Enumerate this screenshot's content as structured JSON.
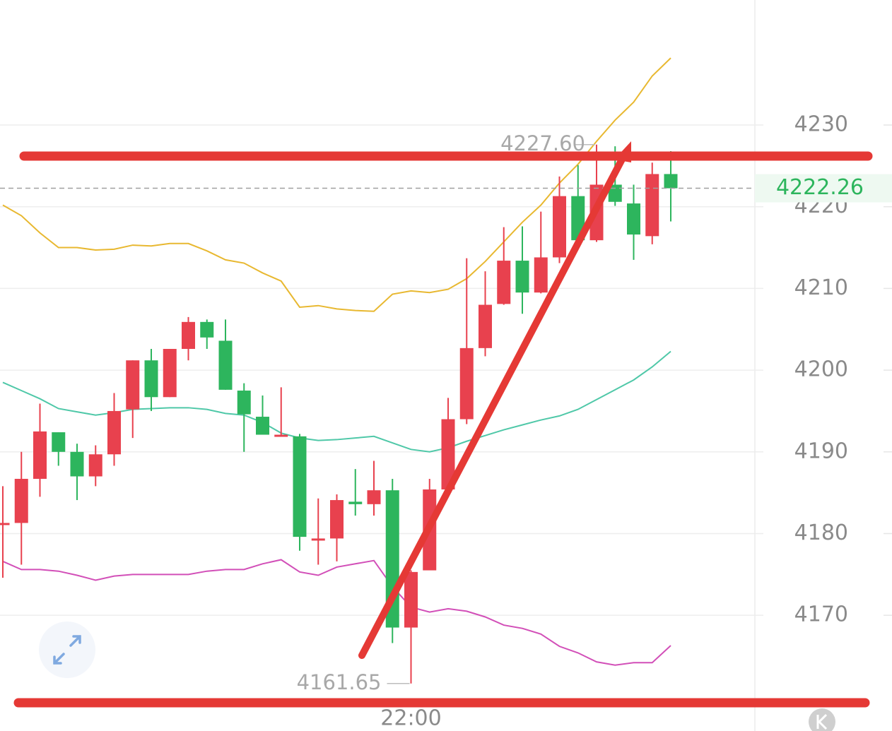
{
  "chart_data": {
    "type": "candlestick",
    "categories": [
      null,
      null,
      null,
      null,
      null,
      null,
      null,
      null,
      null,
      null,
      null,
      null,
      null,
      null,
      null,
      null,
      null,
      null,
      null,
      null,
      null,
      null,
      "22:00",
      null,
      null,
      null,
      null,
      null,
      null,
      null,
      null,
      null,
      null,
      null,
      null,
      null,
      null
    ],
    "open": [
      4181.3,
      4181.3,
      4186.7,
      4192.4,
      4190.0,
      4187.0,
      4189.7,
      4195.2,
      4201.2,
      4196.7,
      4202.6,
      4205.9,
      4203.6,
      4197.5,
      4194.3,
      4192.1,
      4191.9,
      4179.4,
      4179.4,
      4183.9,
      4183.6,
      4185.3,
      4168.5,
      4175.5,
      4185.4,
      4194.0,
      4202.7,
      4208.1,
      4213.4,
      4209.5,
      4213.8,
      4221.3,
      4215.9,
      4222.7,
      4220.4,
      4216.4,
      4224.0
    ],
    "high": [
      4185.8,
      4190.0,
      4195.9,
      4192.4,
      4191.0,
      4190.8,
      4197.2,
      4201.2,
      4202.6,
      4202.6,
      4206.5,
      4206.2,
      4206.2,
      4198.4,
      4196.9,
      4197.9,
      4192.2,
      4184.3,
      4184.8,
      4187.9,
      4188.9,
      4186.7,
      4175.5,
      4186.7,
      4196.6,
      4213.7,
      4212.1,
      4217.5,
      4217.6,
      4219.4,
      4223.7,
      4225.1,
      4227.6,
      4227.4,
      4222.7,
      4225.4,
      4226.8
    ],
    "low": [
      4174.6,
      4176.2,
      4184.5,
      4188.3,
      4184.1,
      4185.8,
      4188.3,
      4191.7,
      4195.0,
      4196.7,
      4201.2,
      4202.6,
      4197.6,
      4190.0,
      4192.1,
      4192.1,
      4177.9,
      4176.2,
      4176.6,
      4182.2,
      4182.2,
      4166.6,
      4161.65,
      4175.5,
      4185.4,
      4193.4,
      4201.7,
      4208.0,
      4206.9,
      4209.4,
      4213.1,
      4215.6,
      4215.7,
      4220.1,
      4213.5,
      4215.4,
      4218.2
    ],
    "close": [
      4181.3,
      4186.7,
      4192.5,
      4190.0,
      4187.0,
      4189.7,
      4195.0,
      4201.2,
      4196.7,
      4202.6,
      4205.9,
      4204.0,
      4197.6,
      4194.6,
      4192.1,
      4192.1,
      4179.6,
      4179.4,
      4184.1,
      4183.6,
      4185.3,
      4168.5,
      4175.3,
      4185.4,
      4194.0,
      4202.7,
      4208.0,
      4213.4,
      4209.5,
      4213.8,
      4221.3,
      4215.9,
      4222.7,
      4220.6,
      4216.6,
      4224.0,
      4222.26
    ],
    "up_color": "#e8414e",
    "down_color": "#2db55d",
    "lines": [
      {
        "color": "#e8b830",
        "values": [
          4220.2,
          4218.9,
          4216.8,
          4215.0,
          4215.0,
          4214.7,
          4214.8,
          4215.3,
          4215.2,
          4215.5,
          4215.5,
          4214.6,
          4213.5,
          4213.1,
          4211.9,
          4210.9,
          4207.7,
          4207.9,
          4207.5,
          4207.3,
          4207.2,
          4209.3,
          4209.7,
          4209.5,
          4209.9,
          4211.2,
          4213.3,
          4215.7,
          4218.1,
          4220.2,
          4222.9,
          4225.2,
          4228.0,
          4230.6,
          4232.8,
          4236.0,
          4238.2
        ]
      },
      {
        "color": "#4fc8a8",
        "values": [
          4198.5,
          4197.5,
          4196.5,
          4195.3,
          4194.9,
          4194.5,
          4194.8,
          4195.2,
          4195.3,
          4195.4,
          4195.4,
          4195.2,
          4194.7,
          4194.5,
          4193.6,
          4192.3,
          4191.7,
          4191.4,
          4191.5,
          4191.7,
          4191.9,
          4191.1,
          4190.3,
          4190.0,
          4190.5,
          4191.3,
          4192.0,
          4192.7,
          4193.3,
          4193.9,
          4194.4,
          4195.2,
          4196.4,
          4197.6,
          4198.8,
          4200.4,
          4202.3
        ]
      },
      {
        "color": "#d24fb8",
        "values": [
          4176.6,
          4175.6,
          4175.6,
          4175.4,
          4174.9,
          4174.3,
          4174.8,
          4175.0,
          4175.0,
          4175.0,
          4175.0,
          4175.4,
          4175.6,
          4175.6,
          4176.3,
          4176.8,
          4175.3,
          4174.9,
          4175.9,
          4176.3,
          4176.7,
          4173.5,
          4171.0,
          4170.4,
          4170.8,
          4170.5,
          4169.8,
          4168.8,
          4168.4,
          4167.7,
          4166.2,
          4165.4,
          4164.3,
          4163.9,
          4164.2,
          4164.2,
          4166.3
        ]
      }
    ],
    "ylim": [
      4155.84,
      4245.3
    ],
    "yticks": [
      4170,
      4180,
      4190,
      4200,
      4210,
      4220,
      4230
    ],
    "grid": true,
    "high_label": "4227.60",
    "last_price": 4222.26
  }
}
